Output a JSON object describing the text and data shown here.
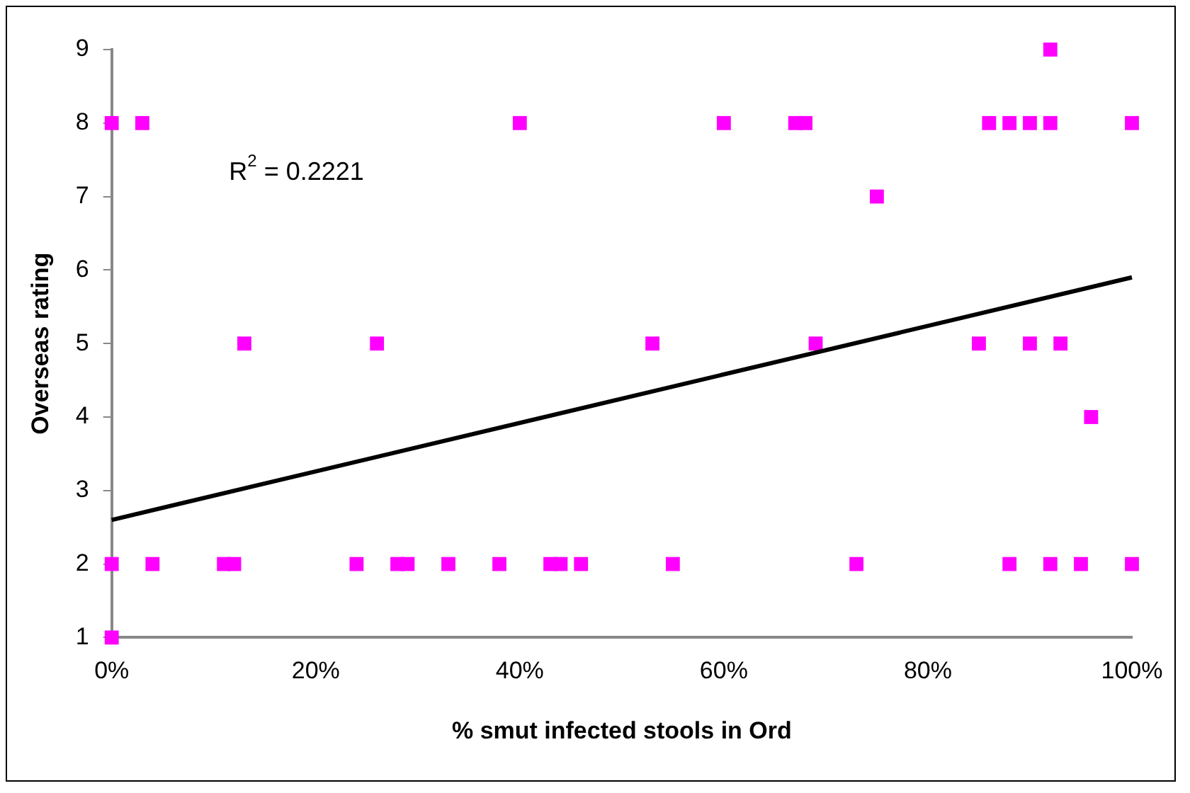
{
  "chart_data": {
    "type": "scatter",
    "xlabel": "% smut infected stools in Ord",
    "ylabel": "Overseas rating",
    "annotations": [
      "R$^{2}$ = 0.2221"
    ],
    "marker": "square",
    "grid": false,
    "legend": false,
    "xlim": [
      0,
      100
    ],
    "ylim": [
      1,
      9
    ],
    "xticks": [
      {
        "value": 0,
        "label": "0%"
      },
      {
        "value": 20,
        "label": "20%"
      },
      {
        "value": 40,
        "label": "40%"
      },
      {
        "value": 60,
        "label": "60%"
      },
      {
        "value": 80,
        "label": "80%"
      },
      {
        "value": 100,
        "label": "100%"
      }
    ],
    "yticks": [
      1,
      2,
      3,
      4,
      5,
      6,
      7,
      8,
      9
    ],
    "series": [
      {
        "color": "#ff00ff",
        "x": [
          0,
          3,
          40,
          13,
          26,
          0,
          4,
          11,
          12,
          24,
          28,
          29,
          33,
          38,
          43,
          44,
          46,
          0,
          92,
          60,
          67,
          68,
          86,
          88,
          90,
          92,
          100,
          75,
          53,
          69,
          85,
          90,
          93,
          96,
          55,
          73,
          88,
          92,
          95,
          100
        ],
        "values": [
          8,
          8,
          8,
          5,
          5,
          2,
          2,
          2,
          2,
          2,
          2,
          2,
          2,
          2,
          2,
          2,
          2,
          1,
          9,
          8,
          8,
          8,
          8,
          8,
          8,
          8,
          8,
          7,
          5,
          5,
          5,
          5,
          5,
          4,
          2,
          2,
          2,
          2,
          2,
          2
        ]
      },
      {
        "type": "line",
        "color": "#000000",
        "marker": "none",
        "x": [
          0,
          100
        ],
        "values": [
          2.6,
          5.9
        ]
      }
    ]
  }
}
